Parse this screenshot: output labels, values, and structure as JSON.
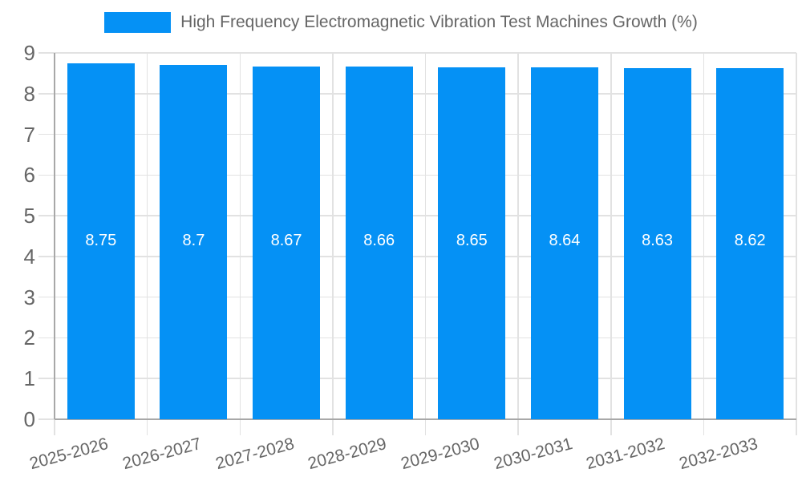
{
  "chart_data": {
    "type": "bar",
    "title": "High Frequency Electromagnetic Vibration Test Machines Growth (%)",
    "categories": [
      "2025-2026",
      "2026-2027",
      "2027-2028",
      "2028-2029",
      "2029-2030",
      "2030-2031",
      "2031-2032",
      "2032-2033"
    ],
    "values": [
      8.75,
      8.7,
      8.67,
      8.66,
      8.65,
      8.64,
      8.63,
      8.62
    ],
    "value_labels": [
      "8.75",
      "8.7",
      "8.67",
      "8.66",
      "8.65",
      "8.64",
      "8.63",
      "8.62"
    ],
    "xlabel": "",
    "ylabel": "",
    "ylim": [
      0,
      9
    ],
    "y_ticks": [
      "0",
      "1",
      "2",
      "3",
      "4",
      "5",
      "6",
      "7",
      "8",
      "9"
    ],
    "grid": true,
    "legend_position": "top",
    "colors": {
      "bar": "#0591f5",
      "grid": "#e2e2e2",
      "axis": "#a8a8a8",
      "tick_text": "#666666",
      "value_text": "#ffffff"
    }
  }
}
